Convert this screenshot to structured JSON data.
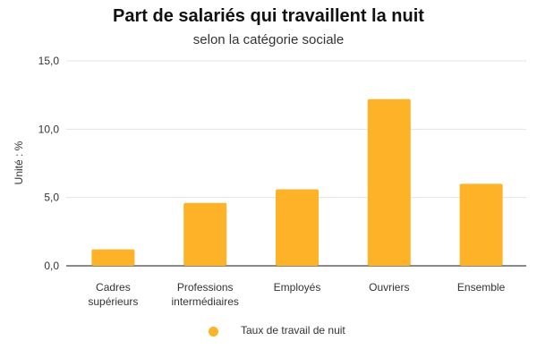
{
  "chart_data": {
    "type": "bar",
    "title": "Part de salariés qui travaillent la nuit",
    "subtitle": "selon la catégorie sociale",
    "ylabel": "Unité : %",
    "xlabel": "",
    "categories": [
      [
        "Cadres",
        "supérieurs"
      ],
      [
        "Professions",
        "intermédiaires"
      ],
      [
        "Employés"
      ],
      [
        "Ouvriers"
      ],
      [
        "Ensemble"
      ]
    ],
    "series": [
      {
        "name": "Taux de travail de nuit",
        "values": [
          1.2,
          4.6,
          5.6,
          12.2,
          6.0
        ]
      }
    ],
    "ylim": [
      0,
      15
    ],
    "yticks": [
      0,
      5,
      10,
      15
    ],
    "ytick_labels": [
      "0,0",
      "5,0",
      "10,0",
      "15,0"
    ],
    "grid": true,
    "legend_position": "bottom",
    "colors": {
      "bar": "#FDB227",
      "grid": "#e3e3e3",
      "axis": "#444444"
    }
  }
}
